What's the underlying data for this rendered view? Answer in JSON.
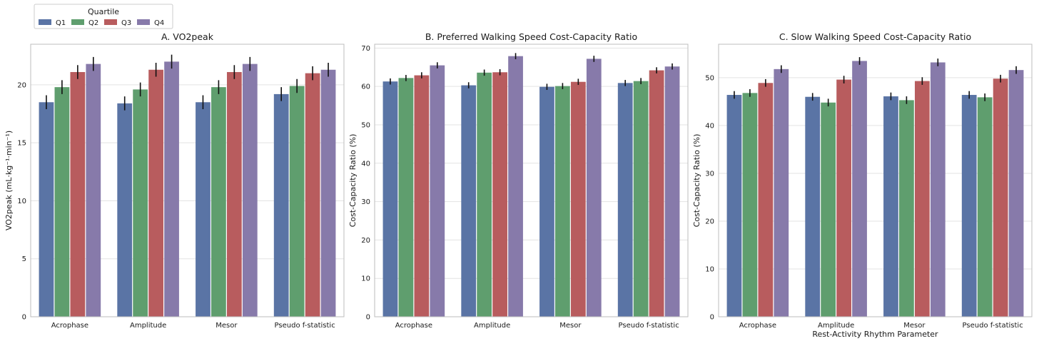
{
  "legend": {
    "title": "Quartile",
    "entries": [
      {
        "label": "Q1",
        "color": "#5a74a5"
      },
      {
        "label": "Q2",
        "color": "#5f9e6e"
      },
      {
        "label": "Q3",
        "color": "#b85c5e"
      },
      {
        "label": "Q4",
        "color": "#877aaa"
      }
    ]
  },
  "chart_data": [
    {
      "type": "bar",
      "title": "A. VO2peak",
      "xlabel": "",
      "ylabel": "VO2peak (mL·kg⁻¹·min⁻¹)",
      "ylim": [
        0,
        23.5
      ],
      "yticks": [
        0,
        5,
        10,
        15,
        20
      ],
      "grid": true,
      "categories": [
        "Acrophase",
        "Amplitude",
        "Mesor",
        "Pseudo f-statistic"
      ],
      "series": [
        {
          "name": "Q1",
          "values": [
            18.5,
            18.4,
            18.5,
            19.2
          ],
          "errors": [
            0.6,
            0.6,
            0.6,
            0.6
          ]
        },
        {
          "name": "Q2",
          "values": [
            19.8,
            19.6,
            19.8,
            19.9
          ],
          "errors": [
            0.6,
            0.6,
            0.6,
            0.6
          ]
        },
        {
          "name": "Q3",
          "values": [
            21.1,
            21.3,
            21.1,
            21.0
          ],
          "errors": [
            0.6,
            0.6,
            0.6,
            0.6
          ]
        },
        {
          "name": "Q4",
          "values": [
            21.8,
            22.0,
            21.8,
            21.3
          ],
          "errors": [
            0.6,
            0.6,
            0.6,
            0.6
          ]
        }
      ]
    },
    {
      "type": "bar",
      "title": "B. Preferred Walking Speed Cost-Capacity Ratio",
      "xlabel": "",
      "ylabel": "Cost-Capacity Ratio (%)",
      "ylim": [
        0,
        71
      ],
      "yticks": [
        0,
        10,
        20,
        30,
        40,
        50,
        60,
        70
      ],
      "grid": true,
      "categories": [
        "Acrophase",
        "Amplitude",
        "Mesor",
        "Pseudo f-statistic"
      ],
      "series": [
        {
          "name": "Q1",
          "values": [
            61.3,
            60.3,
            59.9,
            60.9
          ],
          "errors": [
            0.8,
            0.8,
            0.8,
            0.8
          ]
        },
        {
          "name": "Q2",
          "values": [
            62.2,
            63.6,
            60.1,
            61.4
          ],
          "errors": [
            0.8,
            0.8,
            0.8,
            0.8
          ]
        },
        {
          "name": "Q3",
          "values": [
            62.9,
            63.7,
            61.2,
            64.2
          ],
          "errors": [
            0.8,
            0.8,
            0.8,
            0.8
          ]
        },
        {
          "name": "Q4",
          "values": [
            65.5,
            67.9,
            67.2,
            65.2
          ],
          "errors": [
            0.8,
            0.8,
            0.8,
            0.8
          ]
        }
      ]
    },
    {
      "type": "bar",
      "title": "C. Slow Walking Speed Cost-Capacity Ratio",
      "xlabel": "Rest-Activity Rhythm Parameter",
      "ylabel": "Cost-Capacity Ratio (%)",
      "ylim": [
        0,
        57
      ],
      "yticks": [
        0,
        10,
        20,
        30,
        40,
        50
      ],
      "grid": true,
      "categories": [
        "Acrophase",
        "Amplitude",
        "Mesor",
        "Pseudo f-statistic"
      ],
      "series": [
        {
          "name": "Q1",
          "values": [
            46.4,
            46.0,
            46.1,
            46.4
          ],
          "errors": [
            0.8,
            0.8,
            0.8,
            0.8
          ]
        },
        {
          "name": "Q2",
          "values": [
            46.8,
            44.8,
            45.3,
            45.9
          ],
          "errors": [
            0.8,
            0.8,
            0.8,
            0.8
          ]
        },
        {
          "name": "Q3",
          "values": [
            48.9,
            49.6,
            49.3,
            49.8
          ],
          "errors": [
            0.8,
            0.8,
            0.8,
            0.8
          ]
        },
        {
          "name": "Q4",
          "values": [
            51.8,
            53.5,
            53.2,
            51.6
          ],
          "errors": [
            0.8,
            0.8,
            0.8,
            0.8
          ]
        }
      ]
    }
  ]
}
